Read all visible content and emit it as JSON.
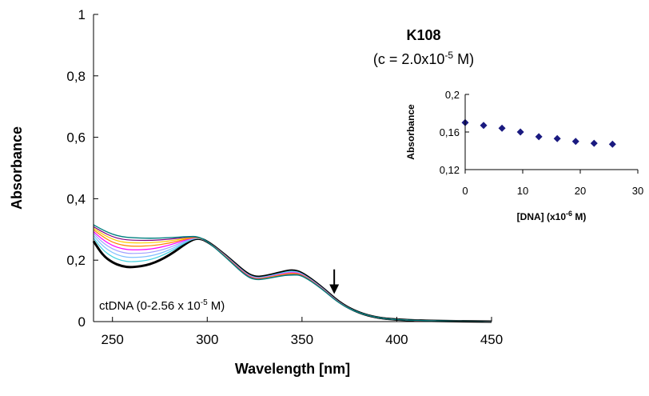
{
  "chart_data": [
    {
      "type": "line",
      "title": "K108",
      "subtitle": {
        "prefix": "(c = 2.0x10",
        "sup": "-5",
        "suffix": " M)"
      },
      "xlabel": "Wavelength [nm]",
      "ylabel": "Absorbance",
      "xlim": [
        240,
        450
      ],
      "ylim": [
        0,
        1
      ],
      "xticks": [
        250,
        300,
        350,
        400,
        450
      ],
      "yticks": [
        0,
        0.2,
        0.4,
        0.6,
        0.8,
        1
      ],
      "ytick_labels": [
        "0",
        "0,2",
        "0,4",
        "0,6",
        "0,8",
        "1"
      ],
      "grid": false,
      "annotation": {
        "prefix": "ctDNA (0-2.56 x 10",
        "sup": "-5",
        "suffix": " M)"
      },
      "arrow": {
        "x": 367,
        "y_from": 0.17,
        "y_to": 0.09,
        "direction": "down"
      },
      "x": [
        240,
        245,
        250,
        255,
        260,
        270,
        280,
        290,
        295,
        300,
        310,
        320,
        325,
        330,
        340,
        345,
        350,
        360,
        370,
        380,
        390,
        400,
        420,
        450
      ],
      "series": [
        {
          "color": "#000000",
          "width": 3,
          "values": [
            0.262,
            0.215,
            0.192,
            0.18,
            0.176,
            0.185,
            0.215,
            0.26,
            0.273,
            0.262,
            0.215,
            0.16,
            0.145,
            0.147,
            0.162,
            0.168,
            0.16,
            0.115,
            0.06,
            0.028,
            0.012,
            0.006,
            0.002,
            0.0
          ]
        },
        {
          "color": "#40d0e0",
          "width": 1.2,
          "values": [
            0.272,
            0.232,
            0.21,
            0.198,
            0.194,
            0.2,
            0.225,
            0.263,
            0.273,
            0.262,
            0.214,
            0.158,
            0.143,
            0.145,
            0.16,
            0.166,
            0.158,
            0.114,
            0.059,
            0.028,
            0.012,
            0.006,
            0.002,
            0.0
          ]
        },
        {
          "color": "#80c0ff",
          "width": 1.2,
          "values": [
            0.28,
            0.245,
            0.224,
            0.212,
            0.208,
            0.212,
            0.232,
            0.265,
            0.274,
            0.262,
            0.213,
            0.157,
            0.142,
            0.144,
            0.158,
            0.164,
            0.157,
            0.113,
            0.059,
            0.028,
            0.012,
            0.006,
            0.002,
            0.0
          ]
        },
        {
          "color": "#a0a0ff",
          "width": 1.2,
          "values": [
            0.287,
            0.256,
            0.236,
            0.225,
            0.221,
            0.224,
            0.24,
            0.267,
            0.274,
            0.262,
            0.212,
            0.156,
            0.141,
            0.143,
            0.157,
            0.162,
            0.156,
            0.112,
            0.058,
            0.028,
            0.012,
            0.006,
            0.002,
            0.0
          ]
        },
        {
          "color": "#ff00ff",
          "width": 1.2,
          "values": [
            0.293,
            0.266,
            0.247,
            0.237,
            0.233,
            0.235,
            0.248,
            0.269,
            0.275,
            0.262,
            0.212,
            0.155,
            0.14,
            0.142,
            0.156,
            0.16,
            0.155,
            0.112,
            0.058,
            0.028,
            0.012,
            0.006,
            0.002,
            0.0
          ]
        },
        {
          "color": "#ff8000",
          "width": 1.2,
          "values": [
            0.299,
            0.276,
            0.258,
            0.249,
            0.245,
            0.246,
            0.255,
            0.271,
            0.275,
            0.262,
            0.211,
            0.154,
            0.139,
            0.141,
            0.154,
            0.158,
            0.154,
            0.111,
            0.058,
            0.028,
            0.012,
            0.006,
            0.002,
            0.0
          ]
        },
        {
          "color": "#ffcc00",
          "width": 1.2,
          "values": [
            0.304,
            0.284,
            0.268,
            0.259,
            0.256,
            0.256,
            0.262,
            0.273,
            0.276,
            0.262,
            0.21,
            0.153,
            0.138,
            0.14,
            0.153,
            0.156,
            0.153,
            0.11,
            0.057,
            0.028,
            0.012,
            0.006,
            0.002,
            0.0
          ]
        },
        {
          "color": "#800080",
          "width": 1.2,
          "values": [
            0.309,
            0.291,
            0.276,
            0.268,
            0.265,
            0.264,
            0.268,
            0.275,
            0.276,
            0.262,
            0.209,
            0.152,
            0.137,
            0.139,
            0.151,
            0.154,
            0.152,
            0.11,
            0.057,
            0.028,
            0.012,
            0.006,
            0.002,
            0.0
          ]
        },
        {
          "color": "#008080",
          "width": 1.4,
          "values": [
            0.315,
            0.298,
            0.284,
            0.276,
            0.273,
            0.271,
            0.273,
            0.277,
            0.277,
            0.262,
            0.208,
            0.15,
            0.136,
            0.138,
            0.15,
            0.152,
            0.151,
            0.109,
            0.057,
            0.028,
            0.012,
            0.006,
            0.002,
            0.0
          ]
        }
      ]
    },
    {
      "type": "scatter",
      "xlabel": {
        "prefix": "[DNA] (x10",
        "sup": "-6",
        "suffix": " M)"
      },
      "ylabel": "Absorbance",
      "xlim": [
        0,
        30
      ],
      "ylim": [
        0.12,
        0.2
      ],
      "xticks": [
        0,
        10,
        20,
        30
      ],
      "yticks": [
        0.12,
        0.16,
        0.2
      ],
      "ytick_labels": [
        "0,12",
        "0,16",
        "0,2"
      ],
      "marker": "diamond",
      "color": "#1a1a80",
      "x": [
        0,
        3.2,
        6.4,
        9.6,
        12.8,
        16.0,
        19.2,
        22.4,
        25.6
      ],
      "values": [
        0.17,
        0.167,
        0.164,
        0.16,
        0.155,
        0.153,
        0.15,
        0.148,
        0.147
      ]
    }
  ]
}
